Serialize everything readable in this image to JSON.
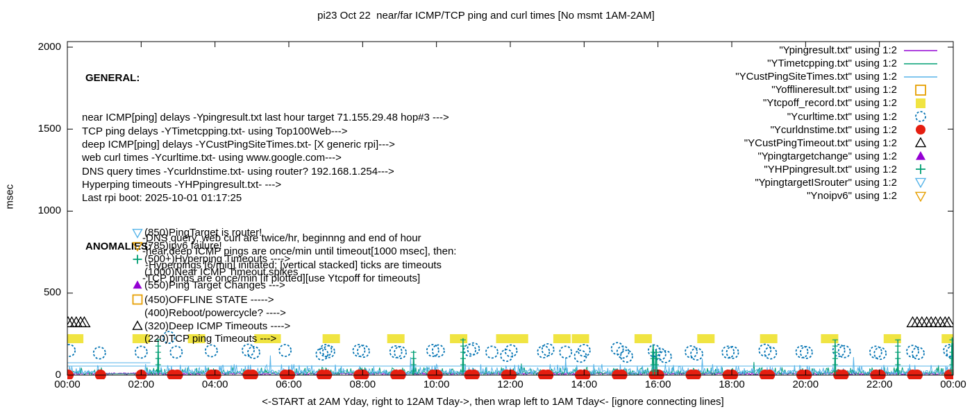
{
  "title": "pi23 Oct 22  near/far ICMP/TCP ping and curl times [No msmt 1AM-2AM]",
  "axes": {
    "ylabel": "msec",
    "xlabel": "<-START at 2AM Yday, right to 12AM Tday->, then wrap left to 1AM Tday<- [ignore connecting lines]",
    "x_ticks": [
      "00:00",
      "02:00",
      "04:00",
      "06:00",
      "08:00",
      "10:00",
      "12:00",
      "14:00",
      "16:00",
      "18:00",
      "20:00",
      "22:00",
      "00:00"
    ],
    "y_ticks": [
      0,
      500,
      1000,
      1500,
      2000
    ],
    "xlim_hours": [
      0,
      24
    ],
    "ylim": [
      0,
      2034
    ]
  },
  "general": {
    "heading": "GENERAL:",
    "lines": [
      "near ICMP[ping] delays -Ypingresult.txt last hour target 71.155.29.48 hop#3 --->",
      "TCP ping delays -YTimetcpping.txt- using Top100Web--->",
      "deep ICMP[ping] delays -YCustPingSiteTimes.txt- [X generic rpi]--->",
      "web curl times -Ycurltime.txt- using www.google.com--->",
      "DNS query times -Ycurldnstime.txt- using router? 192.168.1.254--->",
      "Hyperping timeouts -YHPpingresult.txt- --->",
      "Last rpi boot: 2025-10-01 01:17:25"
    ],
    "notes": [
      "-DNS query, web curl are twice/hr, beginnng and end of hour",
      "-near,deep ICMP pings are once/min until timeout[1000 msec], then:",
      " -Hyperpings [6/min] initiated; [vertical stacked] ticks are timeouts",
      "-TCP pings are once/min [if plotted][use Ytcpoff for timeouts]"
    ]
  },
  "anomalies": {
    "heading": "ANOMALIES:",
    "rows": [
      {
        "marker": "triangle-down-open",
        "color": "#56b4e9",
        "y": 868,
        "label": "(850)PingTarget is router!"
      },
      {
        "marker": "triangle-down-open",
        "color": "#e69f00",
        "y": 788,
        "label": "(785)ipv6 failure!"
      },
      {
        "marker": "plus",
        "color": "#009e73",
        "y": 708,
        "label": "(500+)Hyperping Timeouts ---->"
      },
      {
        "marker": "none",
        "color": "#000000",
        "y": 628,
        "label": "(1000)Near ICMP Timeout spikes"
      },
      {
        "marker": "triangle-filled",
        "color": "#9400d3",
        "y": 548,
        "label": "(550)Ping Target Changes --->"
      },
      {
        "marker": "square-open",
        "color": "#e69f00",
        "y": 460,
        "label": "(450)OFFLINE STATE ----->"
      },
      {
        "marker": "none",
        "color": "#000000",
        "y": 378,
        "label": "(400)Reboot/powercycle? ---->"
      },
      {
        "marker": "triangle-open",
        "color": "#000000",
        "y": 300,
        "label": "(320)Deep ICMP Timeouts ---->"
      },
      {
        "marker": "none",
        "color": "#000000",
        "y": 222,
        "label": "(220)TCP ping Timeouts --->"
      }
    ]
  },
  "legend": [
    {
      "label": "\"Ypingresult.txt\" using 1:2",
      "symbol": "line",
      "color": "#9400d3"
    },
    {
      "label": "\"YTimetcpping.txt\" using 1:2",
      "symbol": "line",
      "color": "#009e73"
    },
    {
      "label": "\"YCustPingSiteTimes.txt\" using 1:2",
      "symbol": "line",
      "color": "#56b4e9"
    },
    {
      "label": "\"Yofflineresult.txt\" using 1:2",
      "symbol": "square-open",
      "color": "#e69f00"
    },
    {
      "label": "\"Ytcpoff_record.txt\" using 1:2",
      "symbol": "square-filled",
      "color": "#f0e442"
    },
    {
      "label": "\"Ycurltime.txt\" using 1:2",
      "symbol": "circle-open",
      "color": "#0072b2"
    },
    {
      "label": "\"Ycurldnstime.txt\" using 1:2",
      "symbol": "circle-filled",
      "color": "#e51e10"
    },
    {
      "label": "\"YCustPingTimeout.txt\" using 1:2",
      "symbol": "triangle-open",
      "color": "#000000"
    },
    {
      "label": "\"Ypingtargetchange\" using 1:2",
      "symbol": "triangle-filled",
      "color": "#9400d3"
    },
    {
      "label": "\"YHPpingresult.txt\" using 1:2",
      "symbol": "plus",
      "color": "#009e73"
    },
    {
      "label": "\"YpingtargetISrouter\" using 1:2",
      "symbol": "triangle-down-open",
      "color": "#56b4e9"
    },
    {
      "label": "\"Ynoipv6\" using 1:2",
      "symbol": "triangle-down-open",
      "color": "#e69f00"
    }
  ],
  "chart_data": {
    "type": "line",
    "x_unit": "hours since 00:00 (data starts 2AM yesterday, wraps; no measurements 1AM-2AM)",
    "xlim": [
      0,
      24
    ],
    "ylim": [
      0,
      2034
    ],
    "grid": false,
    "series": [
      {
        "name": "Ypingresult.txt",
        "style": "noisy-line",
        "color": "#9400d3",
        "baseline": 11,
        "noise": 5,
        "ranges": [
          [
            0,
            24
          ]
        ],
        "spikes": [],
        "flat_segments": []
      },
      {
        "name": "YTimetcpping.txt",
        "style": "noisy-line",
        "color": "#009e73",
        "baseline": 20,
        "noise": 34,
        "ranges": [
          [
            0,
            1
          ],
          [
            2,
            24
          ]
        ],
        "spikes": [
          [
            2.46,
            220
          ],
          [
            9.38,
            150
          ],
          [
            10.72,
            210
          ],
          [
            12.3,
            70
          ],
          [
            15.87,
            185
          ],
          [
            15.95,
            150
          ],
          [
            18.6,
            80
          ],
          [
            20.8,
            220
          ],
          [
            22.5,
            220
          ],
          [
            23.6,
            60
          ],
          [
            23.97,
            230
          ]
        ],
        "flat_segments": [
          [
            1,
            2.02,
            8
          ]
        ]
      },
      {
        "name": "YCustPingSiteTimes.txt",
        "style": "noisy-line",
        "color": "#56b4e9",
        "baseline": 28,
        "noise": 48,
        "ranges": [
          [
            0,
            1
          ],
          [
            2,
            24
          ]
        ],
        "spikes": [
          [
            5.5,
            120
          ],
          [
            9.3,
            110
          ],
          [
            13.5,
            105
          ],
          [
            17.2,
            100
          ],
          [
            21.3,
            110
          ]
        ],
        "flat_segments": [
          [
            0,
            2.25,
            75
          ],
          [
            0,
            24,
            55
          ]
        ]
      },
      {
        "name": "Yofflineresult.txt",
        "style": "square-open",
        "color": "#e69f00",
        "points": []
      },
      {
        "name": "Ytcpoff_record.txt",
        "style": "square-filled",
        "color": "#f0e442",
        "value": 220,
        "xs": [
          0.2,
          2.0,
          3.5,
          5.3,
          5.55,
          7.15,
          8.9,
          10.6,
          11.85,
          12.25,
          13.4,
          13.9,
          15.6,
          17.3,
          19.0,
          20.65,
          22.35,
          23.92
        ]
      },
      {
        "name": "Ycurltime.txt",
        "style": "circle-open",
        "color": "#0072b2",
        "points": [
          [
            0.05,
            150
          ],
          [
            0.87,
            135
          ],
          [
            2.0,
            140
          ],
          [
            2.75,
            230
          ],
          [
            2.95,
            140
          ],
          [
            3.9,
            148
          ],
          [
            4.9,
            152
          ],
          [
            5.05,
            138
          ],
          [
            5.9,
            150
          ],
          [
            6.9,
            128
          ],
          [
            7.0,
            150
          ],
          [
            7.08,
            143
          ],
          [
            7.9,
            150
          ],
          [
            8.02,
            145
          ],
          [
            8.9,
            142
          ],
          [
            9.02,
            138
          ],
          [
            9.9,
            150
          ],
          [
            10.05,
            148
          ],
          [
            10.9,
            152
          ],
          [
            11.0,
            160
          ],
          [
            11.5,
            140
          ],
          [
            11.9,
            120
          ],
          [
            12.02,
            148
          ],
          [
            12.9,
            142
          ],
          [
            13.02,
            155
          ],
          [
            13.5,
            140
          ],
          [
            13.9,
            115
          ],
          [
            14.0,
            150
          ],
          [
            14.9,
            162
          ],
          [
            15.05,
            140
          ],
          [
            15.15,
            115
          ],
          [
            15.9,
            148
          ],
          [
            16.05,
            128
          ],
          [
            16.2,
            112
          ],
          [
            16.9,
            142
          ],
          [
            17.05,
            128
          ],
          [
            17.9,
            140
          ],
          [
            18.02,
            138
          ],
          [
            18.9,
            152
          ],
          [
            19.05,
            135
          ],
          [
            19.9,
            142
          ],
          [
            20.02,
            138
          ],
          [
            20.9,
            150
          ],
          [
            21.05,
            143
          ],
          [
            21.9,
            140
          ],
          [
            22.02,
            132
          ],
          [
            22.9,
            145
          ],
          [
            23.05,
            133
          ],
          [
            23.9,
            150
          ],
          [
            23.98,
            140
          ]
        ]
      },
      {
        "name": "Ycurldnstime.txt",
        "style": "circle-filled",
        "color": "#e51e10",
        "value": 0,
        "xs": [
          0.02,
          0.9,
          2.0,
          2.85,
          2.98,
          3.9,
          4.02,
          4.9,
          5.02,
          5.9,
          6.02,
          6.9,
          7.02,
          7.9,
          8.02,
          8.9,
          9.02,
          9.9,
          10.02,
          10.9,
          11.02,
          11.9,
          12.02,
          12.9,
          13.02,
          13.9,
          14.02,
          14.9,
          15.02,
          15.9,
          16.02,
          16.9,
          17.02,
          17.9,
          18.02,
          18.9,
          19.02,
          19.9,
          20.02,
          20.9,
          21.02,
          21.9,
          22.02,
          22.9,
          23.02,
          23.9,
          23.98
        ]
      },
      {
        "name": "YCustPingTimeout.txt",
        "style": "triangle-open",
        "color": "#000000",
        "value": 320,
        "xs": [
          0.02,
          0.12,
          0.24,
          0.36,
          0.46,
          22.9,
          23.02,
          23.15,
          23.28,
          23.4,
          23.52,
          23.65,
          23.78,
          23.88
        ]
      },
      {
        "name": "Ypingtargetchange",
        "style": "triangle-filled",
        "color": "#9400d3",
        "points": []
      },
      {
        "name": "YHPpingresult.txt",
        "style": "tick-stack",
        "color": "#009e73",
        "stacks": [
          [
            2.46,
            215
          ],
          [
            9.38,
            150
          ],
          [
            10.72,
            225
          ],
          [
            15.87,
            160
          ],
          [
            15.95,
            145
          ],
          [
            20.8,
            215
          ],
          [
            22.5,
            215
          ],
          [
            23.97,
            230
          ]
        ]
      },
      {
        "name": "YpingtargetISrouter",
        "style": "triangle-down-open",
        "color": "#56b4e9",
        "points": []
      },
      {
        "name": "Ynoipv6",
        "style": "triangle-down-open",
        "color": "#e69f00",
        "points": []
      }
    ]
  }
}
